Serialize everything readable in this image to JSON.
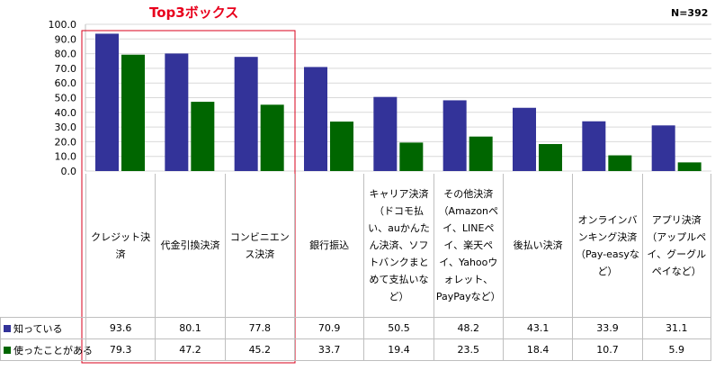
{
  "chart_data": {
    "type": "bar",
    "n_label": "N=392",
    "highlight_label": "Top3ボックス",
    "ylim": [
      0,
      100
    ],
    "y_ticks": [
      "100.0",
      "90.0",
      "80.0",
      "70.0",
      "60.0",
      "50.0",
      "40.0",
      "30.0",
      "20.0",
      "10.0",
      "0.0"
    ],
    "grid": true,
    "categories": [
      "クレジット決済",
      "代金引換決済",
      "コンビニエンス決済",
      "銀行振込",
      "キャリア決済（ドコモ払い、auかんたん決済、ソフトバンクまとめて支払いなど）",
      "その他決済（Amazonペイ、LINEペイ、楽天ペイ、Yahooウォレット、PayPayなど）",
      "後払い決済",
      "オンラインバンキング決済（Pay-easyなど）",
      "アプリ決済（アップルペイ、グーグルペイなど）"
    ],
    "series": [
      {
        "name": "知っている",
        "color": "#333399",
        "values": [
          93.6,
          80.1,
          77.8,
          70.9,
          50.5,
          48.2,
          43.1,
          33.9,
          31.1
        ],
        "labels": [
          "93.6",
          "80.1",
          "77.8",
          "70.9",
          "50.5",
          "48.2",
          "43.1",
          "33.9",
          "31.1"
        ]
      },
      {
        "name": "使ったことがある",
        "color": "#006600",
        "values": [
          79.3,
          47.2,
          45.2,
          33.7,
          19.4,
          23.5,
          18.4,
          10.7,
          5.9
        ],
        "labels": [
          "79.3",
          "47.2",
          "45.2",
          "33.7",
          "19.4",
          "23.5",
          "18.4",
          "10.7",
          "5.9"
        ]
      }
    ],
    "highlight_color": "#d9001b"
  }
}
